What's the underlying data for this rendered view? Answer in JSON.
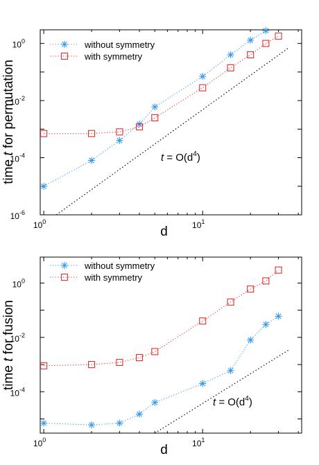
{
  "chart_data": [
    {
      "type": "scatter",
      "title": "",
      "xlabel": "d",
      "ylabel_parts": [
        "time ",
        "t",
        " for permutation"
      ],
      "xscale": "log",
      "yscale": "log",
      "xlim": [
        0.95,
        42
      ],
      "ylim": [
        1e-06,
        3.0
      ],
      "xticks": [
        {
          "base": "10",
          "exp": "0",
          "value": 1
        },
        {
          "base": "10",
          "exp": "1",
          "value": 10
        }
      ],
      "yticks": [
        {
          "base": "10",
          "exp": "-6",
          "value": 1e-06
        },
        {
          "base": "10",
          "exp": "-4",
          "value": 0.0001
        },
        {
          "base": "10",
          "exp": "-2",
          "value": 0.01
        },
        {
          "base": "10",
          "exp": "0",
          "value": 1
        }
      ],
      "legend_position": "top-left",
      "grid": false,
      "series": [
        {
          "name": "without symmetry",
          "marker": "asterisk",
          "color": "#3399ee",
          "x": [
            1,
            2,
            3,
            4,
            5,
            10,
            15,
            20,
            25
          ],
          "y": [
            1e-05,
            8e-05,
            0.0004,
            0.0015,
            0.006,
            0.07,
            0.4,
            1.3,
            2.8
          ]
        },
        {
          "name": "with symmetry",
          "marker": "square",
          "color": "#e03030",
          "x": [
            1,
            2,
            3,
            4,
            5,
            10,
            15,
            20,
            25,
            30
          ],
          "y": [
            0.0007,
            0.0007,
            0.0008,
            0.0012,
            0.0025,
            0.028,
            0.14,
            0.4,
            1.0,
            1.8
          ]
        }
      ],
      "reference_line": {
        "x": [
          1.2,
          35
        ],
        "y": [
          1e-06,
          0.72
        ],
        "color": "#000000"
      },
      "annotation": {
        "var": "t",
        "expr": " = O(d",
        "exp": "4",
        "close": ")"
      }
    },
    {
      "type": "scatter",
      "title": "",
      "xlabel": "d",
      "ylabel_parts": [
        "time ",
        "t",
        " for fusion"
      ],
      "xscale": "log",
      "yscale": "log",
      "xlim": [
        0.95,
        42
      ],
      "ylim": [
        3e-06,
        9.0
      ],
      "xticks": [
        {
          "base": "10",
          "exp": "0",
          "value": 1
        },
        {
          "base": "10",
          "exp": "1",
          "value": 10
        }
      ],
      "yticks": [
        {
          "base": "10",
          "exp": "-4",
          "value": 0.0001
        },
        {
          "base": "10",
          "exp": "-2",
          "value": 0.01
        },
        {
          "base": "10",
          "exp": "0",
          "value": 1
        }
      ],
      "legend_position": "top-left",
      "grid": false,
      "series": [
        {
          "name": "without symmetry",
          "marker": "asterisk",
          "color": "#3399ee",
          "x": [
            1,
            2,
            3,
            4,
            5,
            10,
            15,
            20,
            25,
            30
          ],
          "y": [
            7e-06,
            6e-06,
            7e-06,
            1.5e-05,
            4e-05,
            0.0002,
            0.0006,
            0.008,
            0.03,
            0.06
          ]
        },
        {
          "name": "with symmetry",
          "marker": "square",
          "color": "#e03030",
          "x": [
            1,
            2,
            3,
            4,
            5,
            10,
            15,
            20,
            25,
            30
          ],
          "y": [
            0.0009,
            0.001,
            0.0012,
            0.0018,
            0.003,
            0.04,
            0.2,
            0.6,
            1.2,
            3.0
          ]
        }
      ],
      "reference_line": {
        "x": [
          5,
          35
        ],
        "y": [
          3e-06,
          0.0035
        ],
        "color": "#000000"
      },
      "annotation": {
        "var": "t",
        "expr": " = O(d",
        "exp": "4",
        "close": ")"
      }
    }
  ]
}
